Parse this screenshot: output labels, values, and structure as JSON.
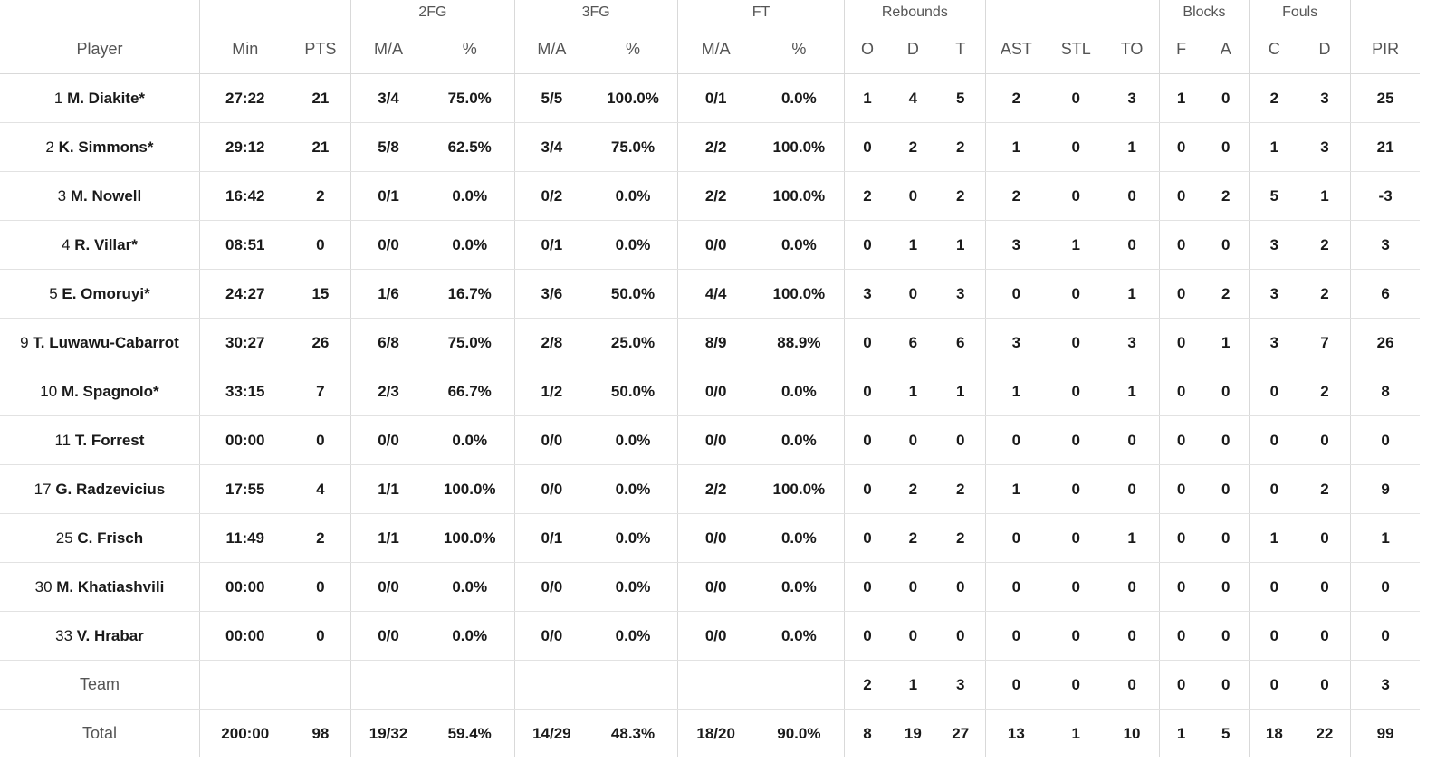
{
  "header": {
    "groups": {
      "fg2": "2FG",
      "fg3": "3FG",
      "ft": "FT",
      "rebounds": "Rebounds",
      "blocks": "Blocks",
      "fouls": "Fouls"
    },
    "columns": {
      "player": "Player",
      "min": "Min",
      "pts": "PTS",
      "fg2_ma": "M/A",
      "fg2_pct": "%",
      "fg3_ma": "M/A",
      "fg3_pct": "%",
      "ft_ma": "M/A",
      "ft_pct": "%",
      "reb_o": "O",
      "reb_d": "D",
      "reb_t": "T",
      "ast": "AST",
      "stl": "STL",
      "to": "TO",
      "blk_f": "F",
      "blk_a": "A",
      "foul_c": "C",
      "foul_d": "D",
      "pir": "PIR"
    }
  },
  "players": [
    {
      "num": "1",
      "name": "M. Diakite*",
      "min": "27:22",
      "pts": "21",
      "fg2_ma": "3/4",
      "fg2_pct": "75.0%",
      "fg3_ma": "5/5",
      "fg3_pct": "100.0%",
      "ft_ma": "0/1",
      "ft_pct": "0.0%",
      "reb_o": "1",
      "reb_d": "4",
      "reb_t": "5",
      "ast": "2",
      "stl": "0",
      "to": "3",
      "blk_f": "1",
      "blk_a": "0",
      "foul_c": "2",
      "foul_d": "3",
      "pir": "25"
    },
    {
      "num": "2",
      "name": "K. Simmons*",
      "min": "29:12",
      "pts": "21",
      "fg2_ma": "5/8",
      "fg2_pct": "62.5%",
      "fg3_ma": "3/4",
      "fg3_pct": "75.0%",
      "ft_ma": "2/2",
      "ft_pct": "100.0%",
      "reb_o": "0",
      "reb_d": "2",
      "reb_t": "2",
      "ast": "1",
      "stl": "0",
      "to": "1",
      "blk_f": "0",
      "blk_a": "0",
      "foul_c": "1",
      "foul_d": "3",
      "pir": "21"
    },
    {
      "num": "3",
      "name": "M. Nowell",
      "min": "16:42",
      "pts": "2",
      "fg2_ma": "0/1",
      "fg2_pct": "0.0%",
      "fg3_ma": "0/2",
      "fg3_pct": "0.0%",
      "ft_ma": "2/2",
      "ft_pct": "100.0%",
      "reb_o": "2",
      "reb_d": "0",
      "reb_t": "2",
      "ast": "2",
      "stl": "0",
      "to": "0",
      "blk_f": "0",
      "blk_a": "2",
      "foul_c": "5",
      "foul_d": "1",
      "pir": "-3"
    },
    {
      "num": "4",
      "name": "R. Villar*",
      "min": "08:51",
      "pts": "0",
      "fg2_ma": "0/0",
      "fg2_pct": "0.0%",
      "fg3_ma": "0/1",
      "fg3_pct": "0.0%",
      "ft_ma": "0/0",
      "ft_pct": "0.0%",
      "reb_o": "0",
      "reb_d": "1",
      "reb_t": "1",
      "ast": "3",
      "stl": "1",
      "to": "0",
      "blk_f": "0",
      "blk_a": "0",
      "foul_c": "3",
      "foul_d": "2",
      "pir": "3"
    },
    {
      "num": "5",
      "name": "E. Omoruyi*",
      "min": "24:27",
      "pts": "15",
      "fg2_ma": "1/6",
      "fg2_pct": "16.7%",
      "fg3_ma": "3/6",
      "fg3_pct": "50.0%",
      "ft_ma": "4/4",
      "ft_pct": "100.0%",
      "reb_o": "3",
      "reb_d": "0",
      "reb_t": "3",
      "ast": "0",
      "stl": "0",
      "to": "1",
      "blk_f": "0",
      "blk_a": "2",
      "foul_c": "3",
      "foul_d": "2",
      "pir": "6"
    },
    {
      "num": "9",
      "name": "T. Luwawu-Cabarrot",
      "min": "30:27",
      "pts": "26",
      "fg2_ma": "6/8",
      "fg2_pct": "75.0%",
      "fg3_ma": "2/8",
      "fg3_pct": "25.0%",
      "ft_ma": "8/9",
      "ft_pct": "88.9%",
      "reb_o": "0",
      "reb_d": "6",
      "reb_t": "6",
      "ast": "3",
      "stl": "0",
      "to": "3",
      "blk_f": "0",
      "blk_a": "1",
      "foul_c": "3",
      "foul_d": "7",
      "pir": "26"
    },
    {
      "num": "10",
      "name": "M. Spagnolo*",
      "min": "33:15",
      "pts": "7",
      "fg2_ma": "2/3",
      "fg2_pct": "66.7%",
      "fg3_ma": "1/2",
      "fg3_pct": "50.0%",
      "ft_ma": "0/0",
      "ft_pct": "0.0%",
      "reb_o": "0",
      "reb_d": "1",
      "reb_t": "1",
      "ast": "1",
      "stl": "0",
      "to": "1",
      "blk_f": "0",
      "blk_a": "0",
      "foul_c": "0",
      "foul_d": "2",
      "pir": "8"
    },
    {
      "num": "11",
      "name": "T. Forrest",
      "min": "00:00",
      "pts": "0",
      "fg2_ma": "0/0",
      "fg2_pct": "0.0%",
      "fg3_ma": "0/0",
      "fg3_pct": "0.0%",
      "ft_ma": "0/0",
      "ft_pct": "0.0%",
      "reb_o": "0",
      "reb_d": "0",
      "reb_t": "0",
      "ast": "0",
      "stl": "0",
      "to": "0",
      "blk_f": "0",
      "blk_a": "0",
      "foul_c": "0",
      "foul_d": "0",
      "pir": "0"
    },
    {
      "num": "17",
      "name": "G. Radzevicius",
      "min": "17:55",
      "pts": "4",
      "fg2_ma": "1/1",
      "fg2_pct": "100.0%",
      "fg3_ma": "0/0",
      "fg3_pct": "0.0%",
      "ft_ma": "2/2",
      "ft_pct": "100.0%",
      "reb_o": "0",
      "reb_d": "2",
      "reb_t": "2",
      "ast": "1",
      "stl": "0",
      "to": "0",
      "blk_f": "0",
      "blk_a": "0",
      "foul_c": "0",
      "foul_d": "2",
      "pir": "9"
    },
    {
      "num": "25",
      "name": "C. Frisch",
      "min": "11:49",
      "pts": "2",
      "fg2_ma": "1/1",
      "fg2_pct": "100.0%",
      "fg3_ma": "0/1",
      "fg3_pct": "0.0%",
      "ft_ma": "0/0",
      "ft_pct": "0.0%",
      "reb_o": "0",
      "reb_d": "2",
      "reb_t": "2",
      "ast": "0",
      "stl": "0",
      "to": "1",
      "blk_f": "0",
      "blk_a": "0",
      "foul_c": "1",
      "foul_d": "0",
      "pir": "1"
    },
    {
      "num": "30",
      "name": "M. Khatiashvili",
      "min": "00:00",
      "pts": "0",
      "fg2_ma": "0/0",
      "fg2_pct": "0.0%",
      "fg3_ma": "0/0",
      "fg3_pct": "0.0%",
      "ft_ma": "0/0",
      "ft_pct": "0.0%",
      "reb_o": "0",
      "reb_d": "0",
      "reb_t": "0",
      "ast": "0",
      "stl": "0",
      "to": "0",
      "blk_f": "0",
      "blk_a": "0",
      "foul_c": "0",
      "foul_d": "0",
      "pir": "0"
    },
    {
      "num": "33",
      "name": "V. Hrabar",
      "min": "00:00",
      "pts": "0",
      "fg2_ma": "0/0",
      "fg2_pct": "0.0%",
      "fg3_ma": "0/0",
      "fg3_pct": "0.0%",
      "ft_ma": "0/0",
      "ft_pct": "0.0%",
      "reb_o": "0",
      "reb_d": "0",
      "reb_t": "0",
      "ast": "0",
      "stl": "0",
      "to": "0",
      "blk_f": "0",
      "blk_a": "0",
      "foul_c": "0",
      "foul_d": "0",
      "pir": "0"
    }
  ],
  "team": {
    "label": "Team",
    "min": "",
    "pts": "",
    "fg2_ma": "",
    "fg2_pct": "",
    "fg3_ma": "",
    "fg3_pct": "",
    "ft_ma": "",
    "ft_pct": "",
    "reb_o": "2",
    "reb_d": "1",
    "reb_t": "3",
    "ast": "0",
    "stl": "0",
    "to": "0",
    "blk_f": "0",
    "blk_a": "0",
    "foul_c": "0",
    "foul_d": "0",
    "pir": "3"
  },
  "total": {
    "label": "Total",
    "min": "200:00",
    "pts": "98",
    "fg2_ma": "19/32",
    "fg2_pct": "59.4%",
    "fg3_ma": "14/29",
    "fg3_pct": "48.3%",
    "ft_ma": "18/20",
    "ft_pct": "90.0%",
    "reb_o": "8",
    "reb_d": "19",
    "reb_t": "27",
    "ast": "13",
    "stl": "1",
    "to": "10",
    "blk_f": "1",
    "blk_a": "5",
    "foul_c": "18",
    "foul_d": "22",
    "pir": "99"
  }
}
